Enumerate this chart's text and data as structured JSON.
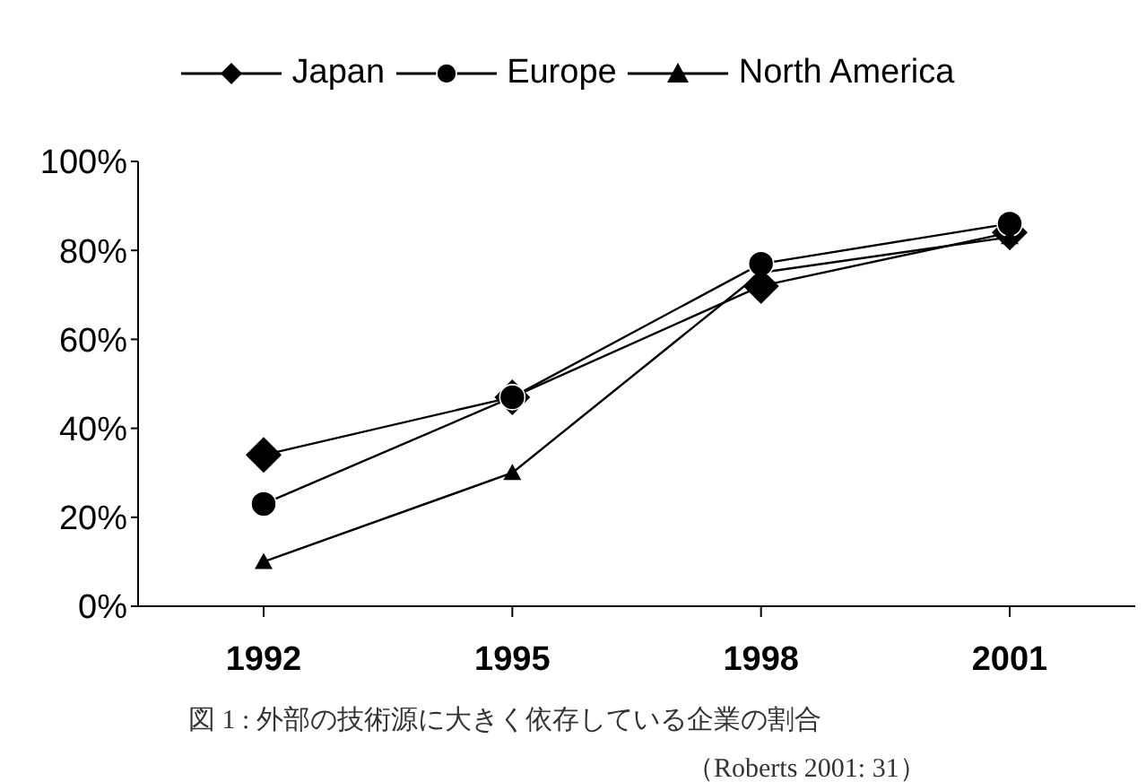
{
  "chart_data": {
    "type": "line",
    "categories": [
      "1992",
      "1995",
      "1998",
      "2001"
    ],
    "series": [
      {
        "name": "Japan",
        "color": "#000000",
        "marker": "diamond",
        "values": [
          34,
          47,
          72,
          84
        ]
      },
      {
        "name": "Europe",
        "color": "#000000",
        "marker": "circle",
        "values": [
          23,
          47,
          77,
          86
        ]
      },
      {
        "name": "North America",
        "color": "#000000",
        "marker": "triangle",
        "values": [
          10,
          30,
          75,
          83
        ]
      }
    ],
    "ylim": [
      0,
      100
    ],
    "yticks": [
      {
        "value": 0,
        "label": "0%"
      },
      {
        "value": 20,
        "label": "20%"
      },
      {
        "value": 40,
        "label": "40%"
      },
      {
        "value": 60,
        "label": "60%"
      },
      {
        "value": 80,
        "label": "80%"
      },
      {
        "value": 100,
        "label": "100%"
      }
    ],
    "grid": false,
    "legend": "top",
    "annotations": [
      "図 1 : 外部の技術源に大きく依存している企業の割合",
      "（Roberts 2001: 31）"
    ]
  }
}
